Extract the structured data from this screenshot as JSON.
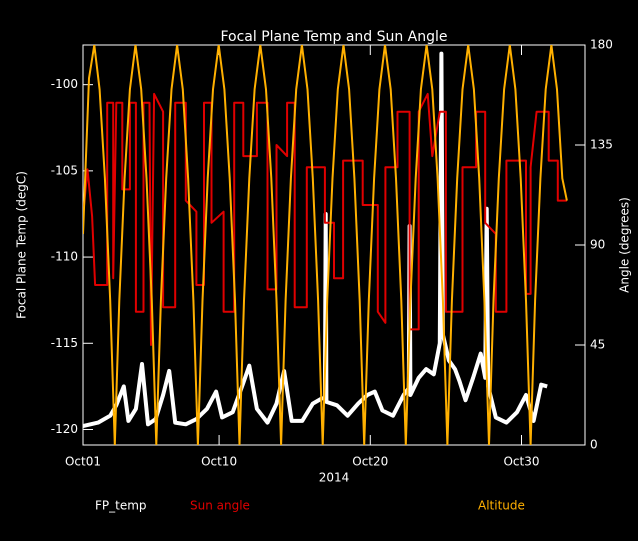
{
  "chart_data": {
    "type": "line",
    "title": "Focal Plane Temp and Sun Angle",
    "xlabel": "2014",
    "ylabel": "Focal Plane Temp (degC)",
    "y2label": "Angle (degrees)",
    "xlim": [
      1,
      34.2
    ],
    "xticks": [
      {
        "value": 1,
        "label": "Oct01"
      },
      {
        "value": 10,
        "label": "Oct10"
      },
      {
        "value": 20,
        "label": "Oct20"
      },
      {
        "value": 30,
        "label": "Oct30"
      }
    ],
    "ylim": [
      -120.9,
      -97.7
    ],
    "yticks": [
      -120,
      -115,
      -110,
      -105,
      -100
    ],
    "y2lim": [
      0,
      180
    ],
    "y2ticks": [
      0,
      45,
      90,
      135,
      180
    ],
    "series": [
      {
        "name": "FP_temp",
        "color": "#ffffff",
        "axis": "y",
        "x": [
          1,
          2,
          2.8,
          3.2,
          3.7,
          4.0,
          4.5,
          4.9,
          5.3,
          5.8,
          6.3,
          6.7,
          7.1,
          7.8,
          8.5,
          9.2,
          9.8,
          10.2,
          10.9,
          11.6,
          12.0,
          12.5,
          13.2,
          13.8,
          14.3,
          14.8,
          15.5,
          16.2,
          16.8,
          17.0,
          17.05,
          17.1,
          17.8,
          18.5,
          19.2,
          19.8,
          20.3,
          20.8,
          21.5,
          22.2,
          22.55,
          22.6,
          22.65,
          23.2,
          23.7,
          24.2,
          24.6,
          24.7,
          24.8,
          25.2,
          25.6,
          25.9,
          26.3,
          26.8,
          27.3,
          27.6,
          27.7,
          27.8,
          28.3,
          29.0,
          29.7,
          30.3,
          30.8,
          31.3,
          31.7
        ],
        "values": [
          -119.8,
          -119.6,
          -119.2,
          -118.6,
          -117.5,
          -119.5,
          -118.8,
          -116.2,
          -119.7,
          -119.4,
          -118.0,
          -116.6,
          -119.6,
          -119.7,
          -119.4,
          -118.8,
          -117.8,
          -119.3,
          -119.0,
          -117.3,
          -116.3,
          -118.8,
          -119.6,
          -118.5,
          -116.6,
          -119.5,
          -119.5,
          -118.5,
          -118.2,
          -118.2,
          -107.5,
          -118.4,
          -118.6,
          -119.2,
          -118.5,
          -118.0,
          -117.8,
          -118.9,
          -119.2,
          -118.0,
          -117.6,
          -108.2,
          -118.0,
          -117.0,
          -116.5,
          -116.8,
          -115.0,
          -98.2,
          -114.5,
          -116.0,
          -116.5,
          -117.2,
          -118.3,
          -117.0,
          -115.6,
          -117.0,
          -107.2,
          -117.5,
          -119.3,
          -119.6,
          -119.0,
          -118.0,
          -119.5,
          -117.4,
          -117.5
        ]
      },
      {
        "name": "Sun angle",
        "color": "#e00000",
        "axis": "y2",
        "x": [
          1.0,
          1.3,
          1.6,
          1.8,
          2.6,
          2.6,
          3.0,
          3.0,
          3.2,
          3.6,
          3.6,
          4.1,
          4.1,
          4.5,
          4.5,
          5.0,
          5.0,
          5.4,
          5.5,
          5.7,
          6.3,
          6.3,
          7.1,
          7.1,
          7.8,
          7.8,
          8.5,
          8.5,
          9.0,
          9.0,
          9.5,
          9.5,
          10.3,
          10.3,
          11.0,
          11.0,
          11.6,
          11.6,
          12.5,
          12.5,
          13.2,
          13.2,
          13.8,
          13.8,
          14.5,
          14.5,
          15.0,
          15.0,
          15.8,
          15.8,
          17.0,
          17.0,
          17.6,
          17.6,
          18.2,
          18.2,
          19.5,
          19.5,
          20.5,
          20.5,
          21.0,
          21.0,
          21.8,
          21.8,
          22.6,
          22.6,
          23.2,
          23.2,
          23.8,
          24.1,
          24.6,
          25.0,
          25.0,
          26.1,
          26.1,
          27.0,
          27.0,
          27.6,
          27.6,
          28.3,
          28.3,
          29.0,
          29.0,
          30.3,
          30.3,
          30.6,
          30.6,
          31.0,
          31.8,
          31.8,
          32.4,
          32.4,
          33.0
        ],
        "values": [
          103,
          124,
          103,
          72,
          72,
          154,
          154,
          75,
          154,
          154,
          115,
          115,
          154,
          154,
          60,
          60,
          154,
          154,
          45,
          158,
          150,
          62,
          62,
          154,
          154,
          110,
          105,
          72,
          72,
          154,
          154,
          100,
          105,
          60,
          60,
          154,
          154,
          130,
          130,
          154,
          154,
          70,
          70,
          135,
          130,
          154,
          154,
          62,
          62,
          125,
          125,
          100,
          100,
          75,
          75,
          128,
          128,
          108,
          108,
          60,
          55,
          125,
          125,
          150,
          150,
          52,
          52,
          150,
          158,
          130,
          150,
          150,
          60,
          60,
          125,
          125,
          150,
          150,
          100,
          95,
          60,
          60,
          128,
          128,
          68,
          68,
          125,
          150,
          150,
          128,
          128,
          110,
          110
        ]
      },
      {
        "name": "Altitude",
        "color": "#ffb000",
        "axis": "y2",
        "x": [
          1.0,
          1.4,
          1.75,
          2.1,
          2.45,
          2.8,
          3.1,
          3.4,
          3.75,
          4.1,
          4.475,
          4.85,
          5.2,
          5.55,
          5.85,
          6.15,
          6.5,
          6.85,
          7.225,
          7.6,
          7.95,
          8.3,
          8.6,
          8.9,
          9.25,
          9.6,
          9.975,
          10.35,
          10.7,
          11.05,
          11.35,
          11.65,
          12.0,
          12.35,
          12.725,
          13.1,
          13.45,
          13.8,
          14.1,
          14.4,
          14.75,
          15.1,
          15.475,
          15.85,
          16.2,
          16.55,
          16.85,
          17.15,
          17.5,
          17.85,
          18.225,
          18.6,
          18.95,
          19.3,
          19.6,
          19.9,
          20.25,
          20.6,
          20.975,
          21.35,
          21.7,
          22.05,
          22.35,
          22.65,
          23.0,
          23.35,
          23.725,
          24.1,
          24.45,
          24.8,
          25.1,
          25.4,
          25.75,
          26.1,
          26.475,
          26.85,
          27.2,
          27.55,
          27.85,
          28.15,
          28.5,
          28.85,
          29.225,
          29.6,
          29.95,
          30.3,
          30.6,
          30.9,
          31.25,
          31.6,
          31.975,
          32.35,
          32.7,
          33.0
        ],
        "values": [
          95,
          165,
          180,
          160,
          120,
          65,
          0,
          65,
          120,
          160,
          180,
          160,
          120,
          65,
          0,
          65,
          120,
          160,
          180,
          160,
          120,
          65,
          0,
          65,
          120,
          160,
          180,
          160,
          120,
          65,
          0,
          65,
          120,
          160,
          180,
          160,
          120,
          65,
          0,
          65,
          120,
          160,
          180,
          160,
          120,
          65,
          0,
          65,
          120,
          160,
          180,
          160,
          120,
          65,
          0,
          65,
          120,
          160,
          180,
          160,
          120,
          65,
          0,
          65,
          120,
          160,
          180,
          160,
          120,
          65,
          0,
          65,
          120,
          160,
          180,
          160,
          120,
          65,
          0,
          65,
          120,
          160,
          180,
          160,
          120,
          65,
          0,
          65,
          120,
          160,
          180,
          160,
          120,
          110
        ]
      }
    ]
  }
}
